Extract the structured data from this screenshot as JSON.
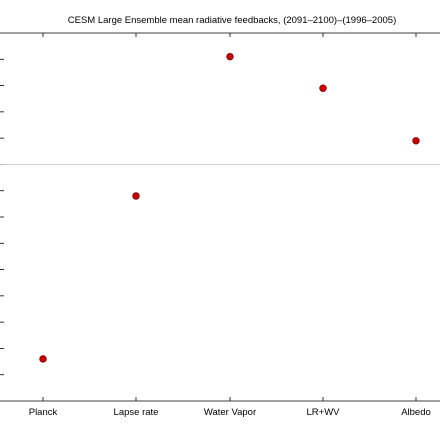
{
  "chart_data": {
    "type": "scatter",
    "title": "CESM Large Ensemble mean radiative feedbacks, (2091–2100)–(1996–2005)",
    "xlabel": "",
    "ylabel": "",
    "categories": [
      "Planck",
      "Lapse rate",
      "Water Vapor",
      "LR+WV",
      "Albedo"
    ],
    "series": [
      {
        "values": [
          -3.7,
          -0.6,
          2.05,
          1.45,
          0.45
        ]
      }
    ],
    "ylim": [
      -4.5,
      2.5
    ],
    "grid": false,
    "zero_line": true,
    "legend": "none",
    "colors": {
      "marker": "#cc0000",
      "marker_edge": "#7a0000",
      "axis": "#000000",
      "zero_line": "#c8c8c8"
    }
  }
}
